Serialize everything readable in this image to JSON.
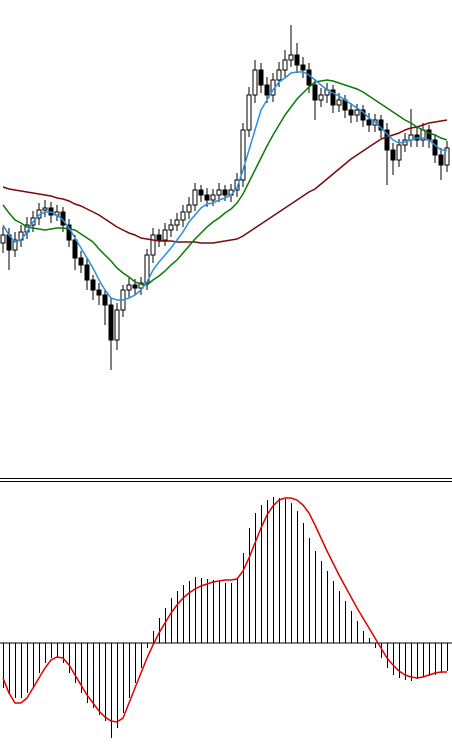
{
  "chart_data": [
    {
      "type": "candlestick",
      "ylim": [
        0,
        475
      ],
      "up_color": "#ffffff",
      "down_color": "#000000",
      "edge_color": "#000000",
      "open": [
        232,
        240,
        225,
        235,
        243,
        250,
        257,
        265,
        267,
        260,
        263,
        250,
        235,
        217,
        210,
        195,
        185,
        180,
        170,
        135,
        165,
        185,
        190,
        187,
        192,
        220,
        240,
        235,
        245,
        250,
        255,
        263,
        270,
        285,
        280,
        275,
        280,
        285,
        280,
        285,
        295,
        345,
        380,
        405,
        390,
        380,
        395,
        405,
        415,
        420,
        410,
        405,
        390,
        375,
        380,
        385,
        370,
        375,
        365,
        360,
        365,
        355,
        350,
        355,
        345,
        325,
        315,
        330,
        335,
        340,
        335,
        345,
        335,
        320,
        310
      ],
      "high": [
        248,
        247,
        243,
        250,
        258,
        264,
        272,
        275,
        273,
        270,
        268,
        256,
        240,
        224,
        216,
        200,
        192,
        186,
        178,
        172,
        190,
        197,
        196,
        198,
        226,
        247,
        246,
        252,
        256,
        262,
        270,
        278,
        292,
        290,
        287,
        286,
        292,
        290,
        291,
        302,
        352,
        388,
        415,
        412,
        398,
        402,
        413,
        425,
        450,
        432,
        418,
        412,
        396,
        387,
        392,
        390,
        382,
        380,
        372,
        371,
        370,
        362,
        361,
        360,
        352,
        332,
        336,
        342,
        366,
        348,
        352,
        350,
        341,
        327,
        334
      ],
      "low": [
        222,
        205,
        218,
        228,
        236,
        243,
        250,
        258,
        252,
        254,
        243,
        228,
        205,
        202,
        185,
        175,
        170,
        150,
        105,
        125,
        158,
        178,
        180,
        180,
        185,
        212,
        228,
        229,
        238,
        244,
        248,
        256,
        264,
        273,
        268,
        269,
        273,
        274,
        273,
        278,
        288,
        338,
        372,
        382,
        372,
        373,
        388,
        398,
        408,
        402,
        397,
        382,
        355,
        368,
        372,
        362,
        363,
        357,
        352,
        353,
        348,
        343,
        343,
        337,
        290,
        300,
        308,
        323,
        328,
        328,
        328,
        327,
        312,
        295,
        303
      ],
      "close": [
        240,
        225,
        235,
        243,
        250,
        257,
        265,
        267,
        260,
        263,
        250,
        235,
        217,
        210,
        195,
        185,
        180,
        170,
        135,
        165,
        185,
        190,
        187,
        192,
        220,
        240,
        235,
        245,
        250,
        255,
        263,
        270,
        285,
        280,
        275,
        280,
        285,
        280,
        285,
        295,
        345,
        380,
        405,
        390,
        380,
        395,
        405,
        415,
        420,
        410,
        405,
        390,
        375,
        380,
        385,
        370,
        375,
        365,
        360,
        365,
        355,
        350,
        355,
        345,
        325,
        315,
        330,
        335,
        340,
        335,
        345,
        335,
        320,
        310,
        327
      ],
      "series": [
        {
          "color": "#7a0a0a",
          "values": [
            288,
            286,
            285,
            284,
            283,
            282,
            281,
            280,
            279,
            277,
            276,
            274,
            271,
            269,
            266,
            263,
            260,
            256,
            252,
            248,
            245,
            242,
            240,
            237,
            236,
            235,
            234,
            234,
            234,
            233,
            233,
            233,
            233,
            232,
            232,
            232,
            233,
            234,
            235,
            236,
            239,
            243,
            247,
            251,
            255,
            259,
            263,
            267,
            271,
            275,
            279,
            283,
            286,
            291,
            296,
            301,
            306,
            311,
            316,
            320,
            324,
            328,
            332,
            336,
            338,
            340,
            342,
            345,
            347,
            348,
            350,
            352,
            353,
            354,
            355
          ]
        },
        {
          "color": "#0a7a0a",
          "values": [
            270,
            262,
            255,
            252,
            248,
            247,
            246,
            245,
            246,
            247,
            247,
            246,
            245,
            241,
            237,
            233,
            226,
            220,
            214,
            207,
            202,
            198,
            193,
            191,
            190,
            195,
            199,
            204,
            210,
            215,
            222,
            229,
            236,
            242,
            248,
            253,
            257,
            262,
            266,
            272,
            281,
            293,
            305,
            317,
            329,
            340,
            350,
            360,
            368,
            376,
            382,
            388,
            393,
            394,
            395,
            394,
            392,
            390,
            388,
            386,
            383,
            379,
            375,
            371,
            367,
            363,
            359,
            355,
            352,
            348,
            345,
            342,
            340,
            337,
            335
          ]
        },
        {
          "color": "#2a8fe0",
          "values": [
            250,
            240,
            233,
            235,
            243,
            253,
            260,
            263,
            263,
            260,
            255,
            247,
            237,
            227,
            217,
            207,
            195,
            185,
            177,
            175,
            175,
            177,
            180,
            185,
            193,
            205,
            213,
            220,
            227,
            235,
            243,
            253,
            260,
            267,
            271,
            272,
            275,
            277,
            280,
            287,
            305,
            325,
            345,
            365,
            375,
            385,
            393,
            397,
            402,
            403,
            403,
            400,
            395,
            390,
            385,
            382,
            379,
            375,
            371,
            367,
            363,
            357,
            353,
            347,
            341,
            335,
            332,
            333,
            335,
            337,
            337,
            335,
            330,
            325,
            325
          ]
        }
      ]
    },
    {
      "type": "macd",
      "ylim": [
        -111,
        161
      ],
      "color": "#000000",
      "values": [
        -45,
        -50,
        -55,
        -55,
        -50,
        -45,
        -30,
        -20,
        -15,
        -15,
        -20,
        -30,
        -40,
        -50,
        -60,
        -65,
        -72,
        -78,
        -95,
        -85,
        -70,
        -55,
        -40,
        -25,
        -5,
        12,
        25,
        35,
        45,
        52,
        58,
        62,
        66,
        65,
        64,
        63,
        62,
        60,
        60,
        65,
        90,
        115,
        130,
        138,
        143,
        146,
        145,
        144,
        140,
        132,
        120,
        105,
        92,
        82,
        72,
        62,
        52,
        42,
        32,
        22,
        12,
        5,
        -5,
        -15,
        -25,
        -32,
        -35,
        -37,
        -38,
        -36,
        -34,
        -33,
        -32,
        -30,
        -28
      ],
      "series": [
        {
          "color": "#e00000",
          "values": [
            -35,
            -50,
            -60,
            -60,
            -55,
            -45,
            -35,
            -25,
            -17,
            -14,
            -15,
            -22,
            -32,
            -42,
            -52,
            -60,
            -68,
            -74,
            -78,
            -79,
            -75,
            -60,
            -45,
            -30,
            -15,
            -2,
            10,
            20,
            30,
            38,
            45,
            50,
            54,
            57,
            59,
            61,
            62,
            63,
            63,
            64,
            72,
            85,
            100,
            115,
            128,
            137,
            143,
            145,
            145,
            143,
            138,
            130,
            118,
            105,
            92,
            80,
            68,
            57,
            46,
            35,
            25,
            15,
            5,
            -5,
            -15,
            -22,
            -28,
            -32,
            -34,
            -35,
            -34,
            -32,
            -30,
            -29,
            -29
          ]
        }
      ]
    }
  ]
}
